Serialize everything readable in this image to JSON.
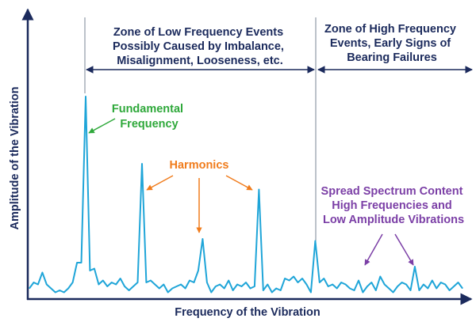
{
  "colors": {
    "axis": "#1b2a5c",
    "spectrum": "#1fa5d8",
    "fundamental": "#2ea83a",
    "harmonics": "#f07c1c",
    "spread": "#7b3fa6",
    "zone_line": "#7a8595"
  },
  "labels": {
    "x_axis": "Frequency of the Vibration",
    "y_axis": "Amplitude of the Vibration",
    "low_zone": [
      "Zone of Low Frequency Events",
      "Possibly Caused by Imbalance,",
      "Misalignment, Looseness, etc."
    ],
    "high_zone": [
      "Zone of High Frequency",
      "Events, Early Signs of",
      "Bearing Failures"
    ],
    "fundamental": [
      "Fundamental",
      "Frequency"
    ],
    "harmonics": "Harmonics",
    "spread": [
      "Spread Spectrum Content",
      "High Frequencies and",
      "Low Amplitude Vibrations"
    ]
  },
  "chart_data": {
    "type": "line",
    "title": "",
    "xlabel": "Frequency of the Vibration",
    "ylabel": "Amplitude of the Vibration",
    "xlim": [
      0,
      100
    ],
    "ylim": [
      0,
      100
    ],
    "grid": false,
    "zone_boundary_x": 66,
    "x": [
      0,
      1,
      2,
      3,
      4,
      5,
      6,
      7,
      8,
      9,
      10,
      11,
      12,
      13,
      14,
      15,
      16,
      17,
      18,
      19,
      20,
      21,
      22,
      23,
      24,
      25,
      26,
      27,
      28,
      29,
      30,
      31,
      32,
      33,
      34,
      35,
      36,
      37,
      38,
      39,
      40,
      41,
      42,
      43,
      44,
      45,
      46,
      47,
      48,
      49,
      50,
      51,
      52,
      53,
      54,
      55,
      56,
      57,
      58,
      59,
      60,
      61,
      62,
      63,
      64,
      65,
      66,
      67,
      68,
      69,
      70,
      71,
      72,
      73,
      74,
      75,
      76,
      77,
      78,
      79,
      80,
      81,
      82,
      83,
      84,
      85,
      86,
      87,
      88,
      89,
      90,
      91,
      92,
      93,
      94,
      95,
      96,
      97,
      98,
      99,
      100
    ],
    "y": [
      3,
      6,
      5,
      11,
      5,
      3,
      1,
      2,
      1,
      3,
      6,
      16,
      16,
      100,
      12,
      13,
      5,
      7,
      4,
      6,
      5,
      8,
      4,
      2,
      4,
      6,
      66,
      6,
      7,
      5,
      3,
      5,
      1,
      3,
      4,
      5,
      3,
      7,
      6,
      12,
      28,
      6,
      1,
      4,
      5,
      3,
      7,
      2,
      5,
      4,
      6,
      3,
      4,
      53,
      2,
      5,
      1,
      3,
      2,
      8,
      7,
      9,
      6,
      8,
      5,
      1,
      27,
      6,
      8,
      4,
      5,
      3,
      6,
      5,
      3,
      2,
      7,
      1,
      4,
      6,
      2,
      9,
      5,
      3,
      1,
      4,
      6,
      5,
      2,
      14,
      2,
      5,
      3,
      7,
      3,
      6,
      5,
      2,
      4,
      6,
      3
    ]
  }
}
